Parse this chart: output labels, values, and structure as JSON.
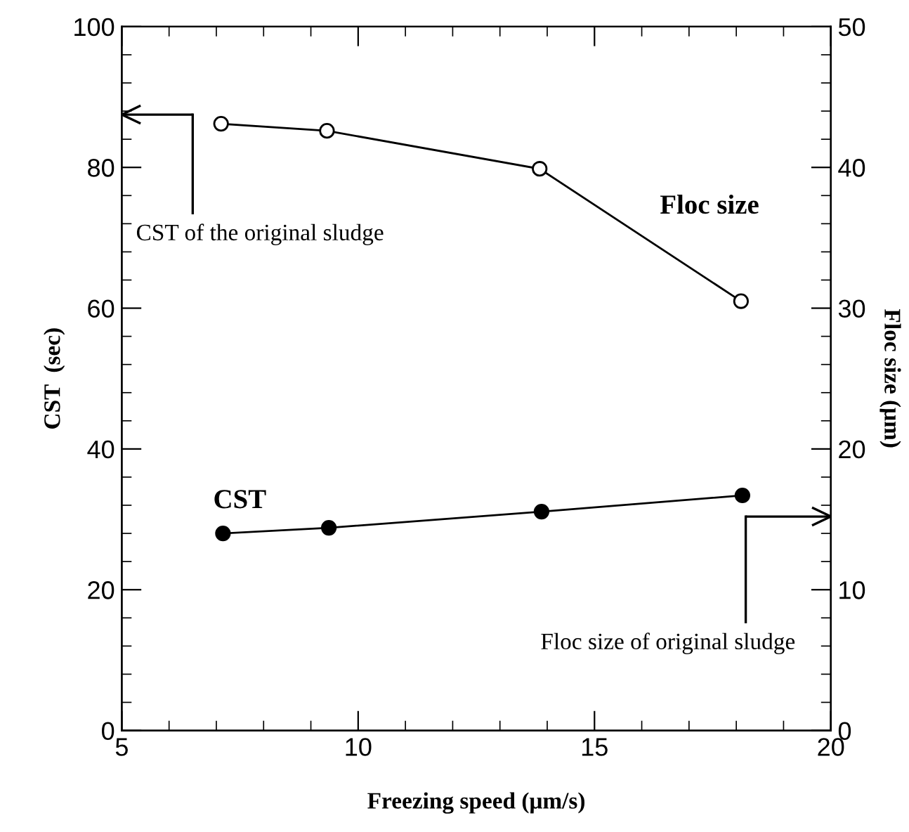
{
  "chart_data": {
    "type": "line",
    "xlabel": "Freezing speed (μm/s)",
    "ylabel": "CST  (sec)",
    "y2label": "Floc size (μm)",
    "xlim": [
      5,
      20
    ],
    "xticks": [
      5,
      10,
      15,
      20
    ],
    "ylim": [
      0,
      100
    ],
    "yticks": [
      0,
      20,
      40,
      60,
      80,
      100
    ],
    "y2lim": [
      0,
      50
    ],
    "y2ticks": [
      0,
      10,
      20,
      30,
      40,
      50
    ],
    "marker": "circle",
    "line_style": "solid",
    "grid": false,
    "series": [
      {
        "name": "CST",
        "color": "#000000",
        "x": [
          7.14,
          9.38,
          13.88,
          18.13
        ],
        "values": [
          28.0,
          28.8,
          31.1,
          33.4
        ]
      },
      {
        "name": "Floc size",
        "color": "#000000",
        "axis": "y2",
        "x": [
          7.1,
          9.34,
          13.84,
          18.1
        ],
        "values": [
          43.1,
          42.6,
          39.9,
          30.5
        ]
      }
    ],
    "ref_lines": [
      {
        "axis": "y",
        "value": 87.5,
        "label": "CST of the original sludge"
      },
      {
        "axis": "y2",
        "value": 15.2,
        "label": "Floc size of original sludge"
      }
    ]
  }
}
